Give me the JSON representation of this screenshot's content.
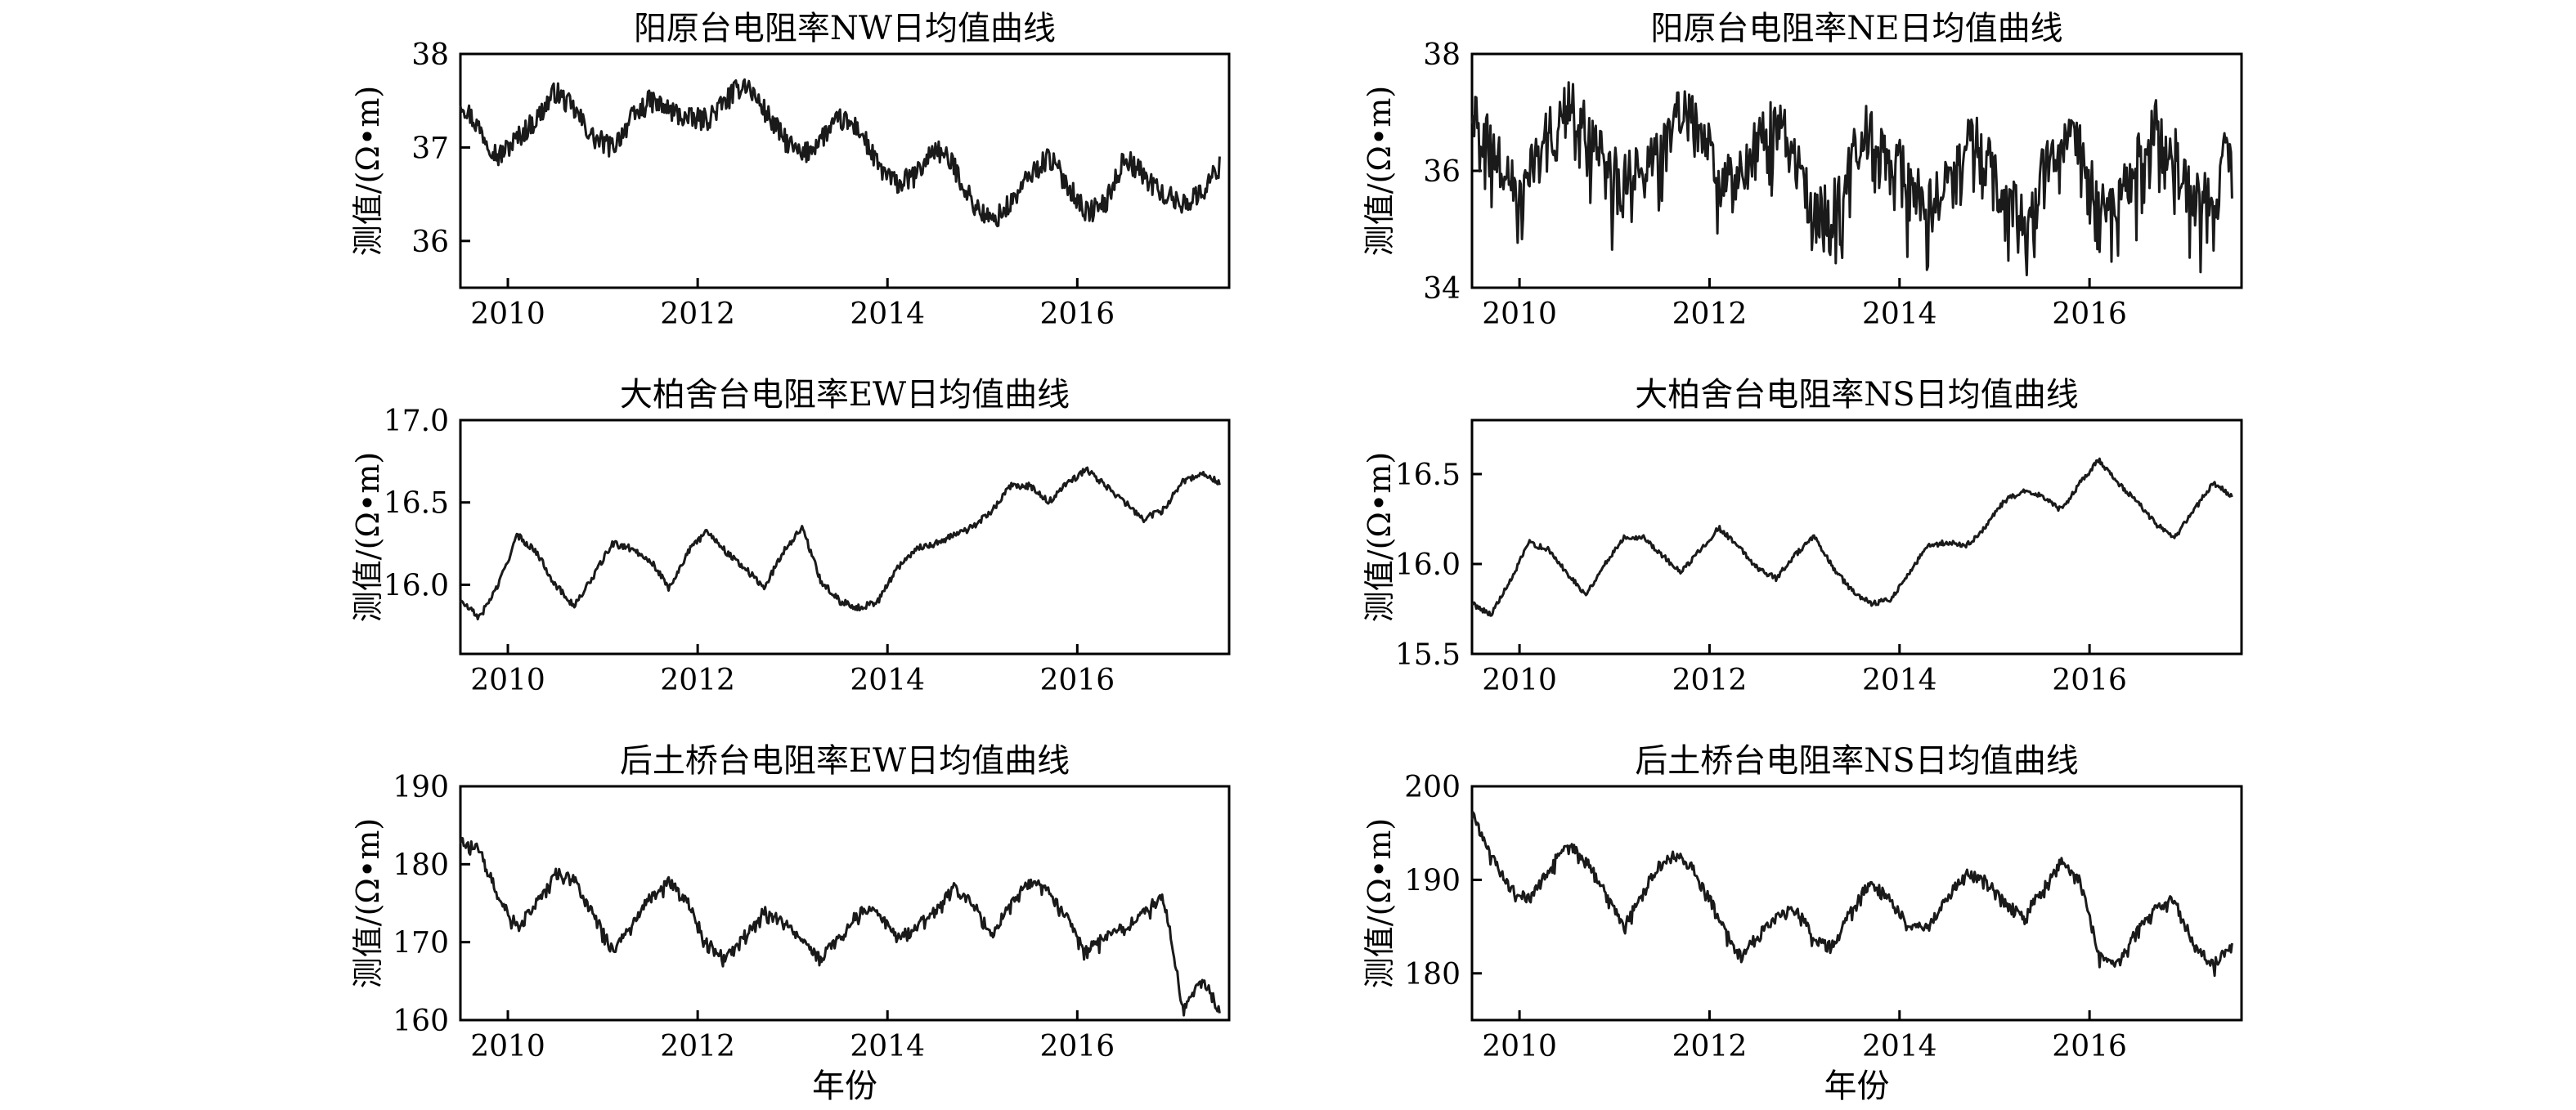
{
  "figure": {
    "xlabel": "年份"
  },
  "chart_data": [
    {
      "type": "line",
      "title": "阳原台电阻率NW日均值曲线",
      "ylabel": "测值/(Ω•m)",
      "xlim": [
        2009.5,
        2017.6
      ],
      "ylim": [
        35.5,
        38.0
      ],
      "yticks": [
        36,
        37,
        38
      ],
      "xticks": [
        2010,
        2012,
        2014,
        2016
      ],
      "noise": 0.12,
      "series": [
        {
          "x": [
            2009.5,
            2009.7,
            2009.9,
            2010.1,
            2010.3,
            2010.5,
            2010.7,
            2010.9,
            2011.1,
            2011.3,
            2011.5,
            2011.7,
            2011.9,
            2012.1,
            2012.3,
            2012.5,
            2012.7,
            2012.9,
            2013.1,
            2013.3,
            2013.5,
            2013.7,
            2013.9,
            2014.1,
            2014.3,
            2014.5,
            2014.7,
            2014.9,
            2015.1,
            2015.3,
            2015.5,
            2015.7,
            2015.9,
            2016.1,
            2016.3,
            2016.5,
            2016.7,
            2016.9,
            2017.1,
            2017.3,
            2017.5
          ],
          "y": [
            37.5,
            37.2,
            36.9,
            37.1,
            37.3,
            37.6,
            37.4,
            37.1,
            37.0,
            37.3,
            37.5,
            37.4,
            37.3,
            37.3,
            37.5,
            37.7,
            37.4,
            37.1,
            36.9,
            37.1,
            37.3,
            37.2,
            36.8,
            36.6,
            36.7,
            37.0,
            36.8,
            36.4,
            36.2,
            36.4,
            36.7,
            36.9,
            36.6,
            36.3,
            36.4,
            36.9,
            36.7,
            36.5,
            36.4,
            36.5,
            36.8
          ]
        }
      ]
    },
    {
      "type": "line",
      "title": "阳原台电阻率NE日均值曲线",
      "ylabel": "测值/(Ω•m)",
      "xlim": [
        2009.5,
        2017.6
      ],
      "ylim": [
        34.0,
        38.0
      ],
      "yticks": [
        34,
        36,
        38
      ],
      "xticks": [
        2010,
        2012,
        2014,
        2016
      ],
      "noise": 0.45,
      "series": [
        {
          "x": [
            2009.5,
            2009.7,
            2009.9,
            2010.1,
            2010.3,
            2010.5,
            2010.7,
            2010.9,
            2011.1,
            2011.3,
            2011.5,
            2011.7,
            2011.9,
            2012.1,
            2012.3,
            2012.5,
            2012.7,
            2012.9,
            2013.1,
            2013.3,
            2013.5,
            2013.7,
            2013.9,
            2014.1,
            2014.3,
            2014.5,
            2014.7,
            2014.9,
            2015.1,
            2015.3,
            2015.5,
            2015.7,
            2015.9,
            2016.1,
            2016.3,
            2016.5,
            2016.7,
            2016.9,
            2017.1,
            2017.3,
            2017.5
          ],
          "y": [
            37.0,
            36.4,
            35.8,
            36.0,
            36.6,
            37.2,
            36.8,
            36.2,
            35.8,
            36.2,
            36.5,
            37.1,
            36.7,
            36.1,
            35.9,
            36.5,
            37.0,
            36.2,
            35.2,
            35.4,
            36.3,
            36.8,
            36.4,
            35.8,
            35.4,
            36.0,
            36.7,
            36.4,
            35.6,
            35.3,
            36.0,
            36.6,
            36.4,
            35.6,
            35.5,
            36.2,
            36.8,
            36.3,
            35.5,
            35.6,
            36.6
          ]
        }
      ]
    },
    {
      "type": "line",
      "title": "大柏舍台电阻率EW日均值曲线",
      "ylabel": "测值/(Ω•m)",
      "xlim": [
        2009.5,
        2017.6
      ],
      "ylim": [
        15.58,
        17.0
      ],
      "yticks": [
        16.0,
        16.5,
        17.0
      ],
      "xticks": [
        2010,
        2012,
        2014,
        2016
      ],
      "noise": 0.02,
      "series": [
        {
          "x": [
            2009.5,
            2009.7,
            2009.9,
            2010.1,
            2010.3,
            2010.5,
            2010.7,
            2010.9,
            2011.1,
            2011.3,
            2011.5,
            2011.7,
            2011.9,
            2012.1,
            2012.3,
            2012.5,
            2012.7,
            2012.9,
            2013.1,
            2013.3,
            2013.5,
            2013.7,
            2013.9,
            2014.1,
            2014.3,
            2014.5,
            2014.7,
            2014.9,
            2015.1,
            2015.3,
            2015.5,
            2015.7,
            2015.9,
            2016.1,
            2016.3,
            2016.5,
            2016.7,
            2016.9,
            2017.1,
            2017.3,
            2017.5
          ],
          "y": [
            15.9,
            15.8,
            16.0,
            16.3,
            16.2,
            16.0,
            15.87,
            16.05,
            16.25,
            16.22,
            16.15,
            15.98,
            16.2,
            16.33,
            16.2,
            16.1,
            15.98,
            16.2,
            16.35,
            16.02,
            15.9,
            15.86,
            15.9,
            16.1,
            16.22,
            16.25,
            16.3,
            16.35,
            16.45,
            16.6,
            16.6,
            16.5,
            16.62,
            16.7,
            16.6,
            16.5,
            16.4,
            16.45,
            16.62,
            16.68,
            16.62
          ]
        }
      ]
    },
    {
      "type": "line",
      "title": "大柏舍台电阻率NS日均值曲线",
      "ylabel": "测值/(Ω•m)",
      "xlim": [
        2009.5,
        2017.6
      ],
      "ylim": [
        15.5,
        16.8
      ],
      "yticks": [
        15.5,
        16.0,
        16.5
      ],
      "xticks": [
        2010,
        2012,
        2014,
        2016
      ],
      "noise": 0.015,
      "series": [
        {
          "x": [
            2009.5,
            2009.7,
            2009.9,
            2010.1,
            2010.3,
            2010.5,
            2010.7,
            2010.9,
            2011.1,
            2011.3,
            2011.5,
            2011.7,
            2011.9,
            2012.1,
            2012.3,
            2012.5,
            2012.7,
            2012.9,
            2013.1,
            2013.3,
            2013.5,
            2013.7,
            2013.9,
            2014.1,
            2014.3,
            2014.5,
            2014.7,
            2014.9,
            2015.1,
            2015.3,
            2015.5,
            2015.7,
            2015.9,
            2016.1,
            2016.3,
            2016.5,
            2016.7,
            2016.9,
            2017.1,
            2017.3,
            2017.5
          ],
          "y": [
            15.78,
            15.72,
            15.9,
            16.12,
            16.08,
            15.95,
            15.83,
            16.0,
            16.15,
            16.15,
            16.05,
            15.95,
            16.08,
            16.2,
            16.1,
            15.98,
            15.92,
            16.05,
            16.15,
            15.98,
            15.85,
            15.78,
            15.8,
            15.95,
            16.1,
            16.12,
            16.1,
            16.2,
            16.35,
            16.4,
            16.38,
            16.3,
            16.45,
            16.58,
            16.45,
            16.35,
            16.22,
            16.15,
            16.3,
            16.45,
            16.38
          ]
        }
      ]
    },
    {
      "type": "line",
      "title": "后土桥台电阻率EW日均值曲线",
      "ylabel": "测值/(Ω•m)",
      "xlim": [
        2009.5,
        2017.6
      ],
      "ylim": [
        160,
        190
      ],
      "yticks": [
        160,
        170,
        180,
        190
      ],
      "xticks": [
        2010,
        2012,
        2014,
        2016
      ],
      "noise": 0.6,
      "series": [
        {
          "x": [
            2009.5,
            2009.7,
            2009.9,
            2010.1,
            2010.3,
            2010.5,
            2010.7,
            2010.9,
            2011.1,
            2011.3,
            2011.5,
            2011.7,
            2011.9,
            2012.1,
            2012.3,
            2012.5,
            2012.7,
            2012.9,
            2013.1,
            2013.3,
            2013.5,
            2013.7,
            2013.9,
            2014.1,
            2014.3,
            2014.5,
            2014.7,
            2014.9,
            2015.1,
            2015.3,
            2015.5,
            2015.7,
            2015.9,
            2016.1,
            2016.3,
            2016.5,
            2016.7,
            2016.9,
            2017.0,
            2017.1,
            2017.2,
            2017.3,
            2017.4,
            2017.5
          ],
          "y": [
            183,
            182,
            176,
            172,
            175,
            179,
            178,
            174,
            169,
            172,
            176,
            178,
            175,
            170,
            168,
            171,
            174,
            173,
            170,
            168,
            171,
            174,
            174,
            171,
            172,
            174,
            177,
            175,
            171,
            175,
            178,
            177,
            173,
            169,
            171,
            172,
            174,
            176,
            170,
            162,
            163,
            165,
            164,
            161
          ]
        }
      ]
    },
    {
      "type": "line",
      "title": "后土桥台电阻率NS日均值曲线",
      "ylabel": "测值/(Ω•m)",
      "xlim": [
        2009.5,
        2017.6
      ],
      "ylim": [
        175,
        200
      ],
      "yticks": [
        180,
        190,
        200
      ],
      "xticks": [
        2010,
        2012,
        2014,
        2016
      ],
      "noise": 0.5,
      "series": [
        {
          "x": [
            2009.5,
            2009.7,
            2009.9,
            2010.1,
            2010.3,
            2010.5,
            2010.7,
            2010.9,
            2011.1,
            2011.3,
            2011.5,
            2011.7,
            2011.9,
            2012.1,
            2012.3,
            2012.5,
            2012.7,
            2012.9,
            2013.1,
            2013.3,
            2013.5,
            2013.7,
            2013.9,
            2014.1,
            2014.3,
            2014.5,
            2014.7,
            2014.9,
            2015.1,
            2015.3,
            2015.5,
            2015.7,
            2015.9,
            2016.1,
            2016.3,
            2016.5,
            2016.7,
            2016.9,
            2017.1,
            2017.3,
            2017.5
          ],
          "y": [
            197,
            193,
            189,
            188,
            191,
            194,
            192,
            189,
            185,
            189,
            192,
            193,
            190,
            186,
            182,
            184,
            186,
            187,
            184,
            183,
            187,
            190,
            188,
            185,
            185,
            188,
            191,
            190,
            188,
            186,
            189,
            192,
            190,
            182,
            181,
            185,
            187,
            188,
            183,
            181,
            183
          ]
        }
      ]
    }
  ]
}
